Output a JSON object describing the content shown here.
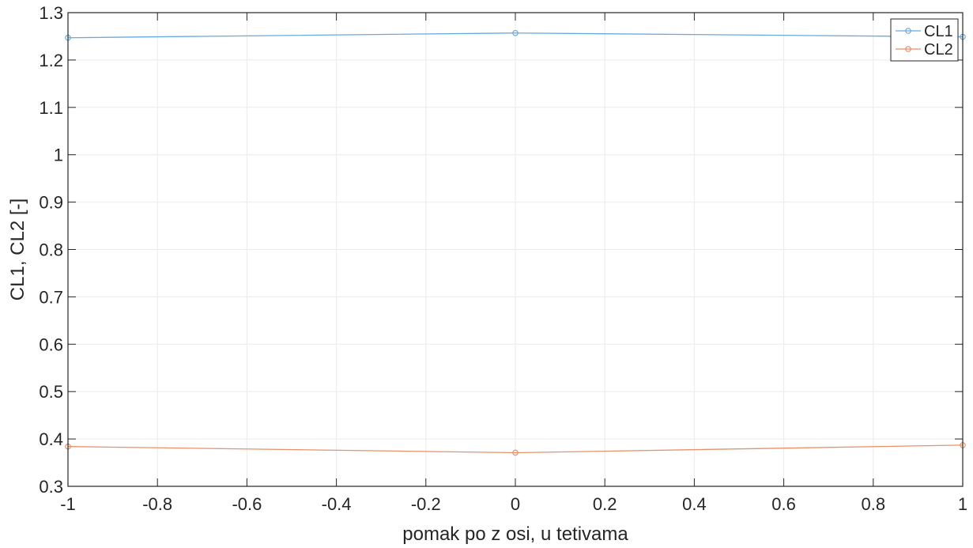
{
  "colors": {
    "background": "#ffffff",
    "axis": "#262626",
    "grid": "#ebebeb",
    "cl1": "#6aa9df",
    "cl2": "#e8916a"
  },
  "chart_data": {
    "type": "line",
    "title": "",
    "xlabel": "pomak po z osi, u tetivama",
    "ylabel": "CL1, CL2 [-]",
    "xlim": [
      -1,
      1
    ],
    "ylim": [
      0.3,
      1.3
    ],
    "grid": true,
    "x_ticks": [
      -1,
      -0.8,
      -0.6,
      -0.4,
      -0.2,
      0,
      0.2,
      0.4,
      0.6,
      0.8,
      1
    ],
    "x_tick_labels": [
      "-1",
      "-0.8",
      "-0.6",
      "-0.4",
      "-0.2",
      "0",
      "0.2",
      "0.4",
      "0.6",
      "0.8",
      "1"
    ],
    "y_ticks": [
      0.3,
      0.4,
      0.5,
      0.6,
      0.7,
      0.8,
      0.9,
      1,
      1.1,
      1.2,
      1.3
    ],
    "y_tick_labels": [
      "0.3",
      "0.4",
      "0.5",
      "0.6",
      "0.7",
      "0.8",
      "0.9",
      "1",
      "1.1",
      "1.2",
      "1.3"
    ],
    "legend_position": "top-right",
    "x": [
      -1,
      0,
      1
    ],
    "series": [
      {
        "name": "CL1",
        "values": [
          1.247,
          1.257,
          1.249
        ],
        "marker": "circle"
      },
      {
        "name": "CL2",
        "values": [
          0.384,
          0.371,
          0.387
        ],
        "marker": "circle"
      }
    ]
  }
}
